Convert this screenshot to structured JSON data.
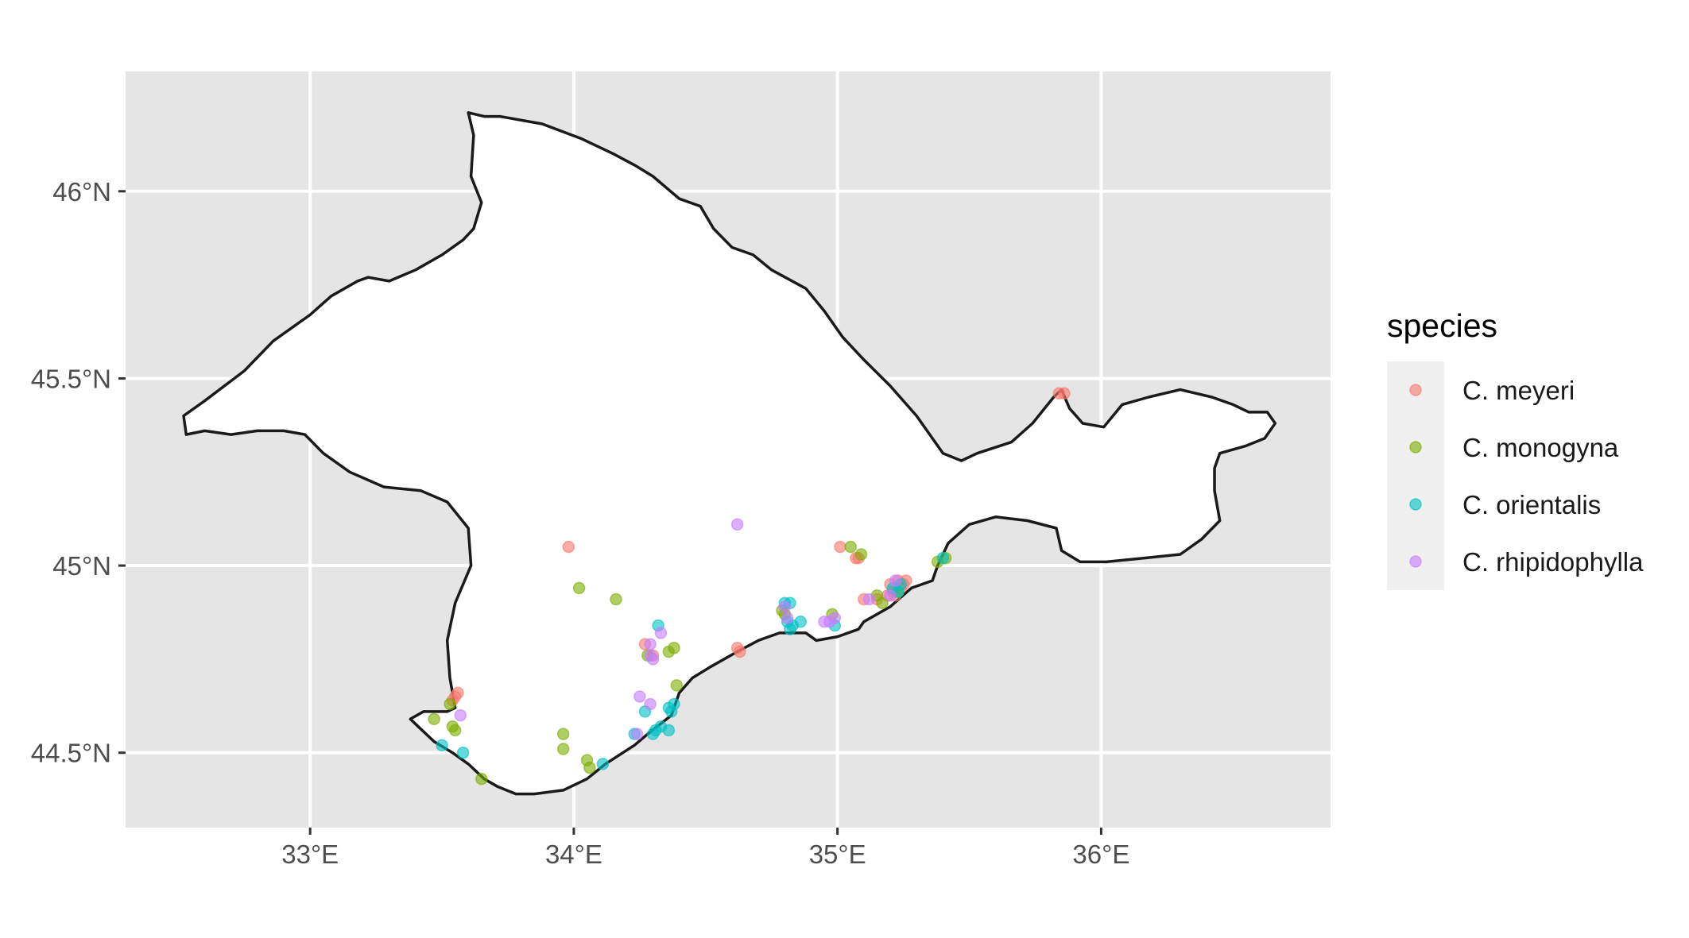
{
  "chart_data": {
    "type": "scatter",
    "title": "",
    "xlabel": "",
    "ylabel": "",
    "xlim": [
      32.3,
      36.87
    ],
    "ylim": [
      44.3,
      46.32
    ],
    "grid": true,
    "legend_position": "right",
    "x_ticks": [
      33,
      34,
      35,
      36
    ],
    "x_tick_labels": [
      "33°E",
      "34°E",
      "35°E",
      "36°E"
    ],
    "y_ticks": [
      44.5,
      45,
      45.5,
      46
    ],
    "y_tick_labels": [
      "44.5°N",
      "45°N",
      "45.5°N",
      "46°N"
    ],
    "legend": {
      "title": "species",
      "entries": [
        "C. meyeri",
        "C. monogyna",
        "C. orientalis",
        "C. rhipidophylla"
      ]
    },
    "colors": {
      "panel_background": "#e5e5e5",
      "grid": "#ffffff",
      "land": "#ffffff",
      "coastline": "#1a1a1a",
      "legend_key_background": "#f0f0f0",
      "series": [
        "#F8766D",
        "#7CAE00",
        "#00BFC4",
        "#C77CFF"
      ]
    },
    "coastline": [
      [
        32.6,
        45.36
      ],
      [
        32.53,
        45.35
      ],
      [
        32.52,
        45.4
      ],
      [
        32.6,
        45.44
      ],
      [
        32.75,
        45.52
      ],
      [
        32.86,
        45.6
      ],
      [
        33.0,
        45.67
      ],
      [
        33.08,
        45.72
      ],
      [
        33.18,
        45.76
      ],
      [
        33.22,
        45.77
      ],
      [
        33.3,
        45.76
      ],
      [
        33.4,
        45.79
      ],
      [
        33.5,
        45.83
      ],
      [
        33.58,
        45.87
      ],
      [
        33.62,
        45.9
      ],
      [
        33.65,
        45.97
      ],
      [
        33.61,
        46.04
      ],
      [
        33.62,
        46.15
      ],
      [
        33.6,
        46.21
      ],
      [
        33.66,
        46.2
      ],
      [
        33.72,
        46.2
      ],
      [
        33.88,
        46.18
      ],
      [
        34.03,
        46.14
      ],
      [
        34.15,
        46.1
      ],
      [
        34.23,
        46.07
      ],
      [
        34.3,
        46.04
      ],
      [
        34.4,
        45.98
      ],
      [
        34.48,
        45.96
      ],
      [
        34.53,
        45.9
      ],
      [
        34.6,
        45.85
      ],
      [
        34.68,
        45.83
      ],
      [
        34.75,
        45.79
      ],
      [
        34.88,
        45.74
      ],
      [
        34.95,
        45.68
      ],
      [
        35.02,
        45.61
      ],
      [
        35.1,
        45.55
      ],
      [
        35.2,
        45.48
      ],
      [
        35.3,
        45.4
      ],
      [
        35.4,
        45.3
      ],
      [
        35.47,
        45.28
      ],
      [
        35.53,
        45.3
      ],
      [
        35.66,
        45.33
      ],
      [
        35.74,
        45.38
      ],
      [
        35.82,
        45.45
      ],
      [
        35.85,
        45.47
      ],
      [
        35.88,
        45.42
      ],
      [
        35.93,
        45.38
      ],
      [
        36.01,
        45.37
      ],
      [
        36.08,
        45.43
      ],
      [
        36.18,
        45.45
      ],
      [
        36.3,
        45.47
      ],
      [
        36.42,
        45.45
      ],
      [
        36.5,
        45.43
      ],
      [
        36.56,
        45.41
      ],
      [
        36.63,
        45.41
      ],
      [
        36.66,
        45.38
      ],
      [
        36.62,
        45.34
      ],
      [
        36.55,
        45.32
      ],
      [
        36.45,
        45.3
      ],
      [
        36.43,
        45.26
      ],
      [
        36.43,
        45.2
      ],
      [
        36.45,
        45.12
      ],
      [
        36.38,
        45.07
      ],
      [
        36.3,
        45.03
      ],
      [
        36.16,
        45.02
      ],
      [
        36.02,
        45.01
      ],
      [
        35.92,
        45.01
      ],
      [
        35.85,
        45.04
      ],
      [
        35.83,
        45.1
      ],
      [
        35.72,
        45.12
      ],
      [
        35.6,
        45.13
      ],
      [
        35.5,
        45.11
      ],
      [
        35.42,
        45.06
      ],
      [
        35.4,
        45.03
      ],
      [
        35.38,
        45.0
      ],
      [
        35.36,
        44.96
      ],
      [
        35.28,
        44.94
      ],
      [
        35.2,
        44.89
      ],
      [
        35.1,
        44.85
      ],
      [
        35.08,
        44.83
      ],
      [
        35.0,
        44.81
      ],
      [
        34.92,
        44.8
      ],
      [
        34.88,
        44.82
      ],
      [
        34.78,
        44.82
      ],
      [
        34.7,
        44.8
      ],
      [
        34.62,
        44.77
      ],
      [
        34.52,
        44.73
      ],
      [
        34.45,
        44.7
      ],
      [
        34.4,
        44.66
      ],
      [
        34.37,
        44.6
      ],
      [
        34.28,
        44.55
      ],
      [
        34.23,
        44.52
      ],
      [
        34.12,
        44.47
      ],
      [
        34.05,
        44.43
      ],
      [
        33.96,
        44.4
      ],
      [
        33.85,
        44.39
      ],
      [
        33.78,
        44.39
      ],
      [
        33.71,
        44.41
      ],
      [
        33.66,
        44.43
      ],
      [
        33.6,
        44.47
      ],
      [
        33.54,
        44.5
      ],
      [
        33.47,
        44.53
      ],
      [
        33.41,
        44.57
      ],
      [
        33.38,
        44.59
      ],
      [
        33.43,
        44.61
      ],
      [
        33.52,
        44.61
      ],
      [
        33.55,
        44.62
      ],
      [
        33.53,
        44.7
      ],
      [
        33.52,
        44.8
      ],
      [
        33.55,
        44.9
      ],
      [
        33.61,
        45.0
      ],
      [
        33.6,
        45.1
      ],
      [
        33.52,
        45.17
      ],
      [
        33.42,
        45.2
      ],
      [
        33.28,
        45.21
      ],
      [
        33.15,
        45.25
      ],
      [
        33.05,
        45.3
      ],
      [
        32.98,
        45.35
      ],
      [
        32.9,
        45.36
      ],
      [
        32.8,
        45.36
      ],
      [
        32.7,
        45.35
      ],
      [
        32.6,
        45.36
      ]
    ],
    "series": [
      {
        "name": "C. meyeri",
        "points": [
          [
            35.84,
            45.46
          ],
          [
            35.86,
            45.46
          ],
          [
            33.98,
            45.05
          ],
          [
            35.01,
            45.05
          ],
          [
            35.07,
            45.02
          ],
          [
            35.08,
            45.02
          ],
          [
            34.62,
            44.78
          ],
          [
            34.63,
            44.77
          ],
          [
            35.1,
            44.91
          ],
          [
            35.15,
            44.91
          ],
          [
            35.19,
            44.92
          ],
          [
            35.21,
            44.93
          ],
          [
            35.22,
            44.92
          ],
          [
            35.24,
            44.94
          ],
          [
            35.25,
            44.95
          ],
          [
            35.23,
            44.96
          ],
          [
            35.26,
            44.96
          ],
          [
            35.2,
            44.95
          ],
          [
            33.56,
            44.66
          ],
          [
            33.55,
            44.65
          ],
          [
            33.54,
            44.64
          ],
          [
            34.27,
            44.79
          ],
          [
            34.3,
            44.76
          ]
        ]
      },
      {
        "name": "C. monogyna",
        "points": [
          [
            34.02,
            44.94
          ],
          [
            34.16,
            44.91
          ],
          [
            34.38,
            44.78
          ],
          [
            34.36,
            44.77
          ],
          [
            34.39,
            44.68
          ],
          [
            33.96,
            44.55
          ],
          [
            33.96,
            44.51
          ],
          [
            34.05,
            44.48
          ],
          [
            34.06,
            44.46
          ],
          [
            33.47,
            44.59
          ],
          [
            33.54,
            44.57
          ],
          [
            33.55,
            44.56
          ],
          [
            33.65,
            44.43
          ],
          [
            35.05,
            45.05
          ],
          [
            35.09,
            45.03
          ],
          [
            35.15,
            44.92
          ],
          [
            35.17,
            44.9
          ],
          [
            35.23,
            44.93
          ],
          [
            35.38,
            45.01
          ],
          [
            35.41,
            45.02
          ],
          [
            34.8,
            44.87
          ],
          [
            34.79,
            44.88
          ],
          [
            34.98,
            44.87
          ],
          [
            33.53,
            44.63
          ],
          [
            34.28,
            44.76
          ]
        ]
      },
      {
        "name": "C. orientalis",
        "points": [
          [
            34.32,
            44.84
          ],
          [
            34.31,
            44.56
          ],
          [
            34.33,
            44.57
          ],
          [
            34.36,
            44.56
          ],
          [
            34.38,
            44.63
          ],
          [
            34.36,
            44.62
          ],
          [
            34.37,
            44.61
          ],
          [
            34.27,
            44.61
          ],
          [
            34.3,
            44.55
          ],
          [
            34.23,
            44.55
          ],
          [
            34.11,
            44.47
          ],
          [
            33.58,
            44.5
          ],
          [
            33.5,
            44.52
          ],
          [
            34.8,
            44.9
          ],
          [
            34.81,
            44.85
          ],
          [
            34.82,
            44.83
          ],
          [
            34.82,
            44.9
          ],
          [
            34.86,
            44.85
          ],
          [
            34.99,
            44.84
          ],
          [
            35.21,
            44.94
          ],
          [
            35.23,
            44.93
          ],
          [
            35.24,
            44.95
          ],
          [
            35.4,
            45.02
          ],
          [
            34.83,
            44.84
          ]
        ]
      },
      {
        "name": "C. rhipidophylla",
        "points": [
          [
            34.62,
            45.11
          ],
          [
            34.33,
            44.82
          ],
          [
            34.29,
            44.79
          ],
          [
            34.3,
            44.75
          ],
          [
            34.29,
            44.76
          ],
          [
            34.25,
            44.65
          ],
          [
            34.29,
            44.63
          ],
          [
            34.24,
            44.55
          ],
          [
            34.8,
            44.89
          ],
          [
            34.95,
            44.85
          ],
          [
            34.97,
            44.85
          ],
          [
            34.99,
            44.86
          ],
          [
            35.12,
            44.91
          ],
          [
            35.2,
            44.92
          ],
          [
            35.22,
            44.96
          ],
          [
            33.57,
            44.6
          ],
          [
            34.81,
            44.86
          ]
        ]
      }
    ]
  }
}
